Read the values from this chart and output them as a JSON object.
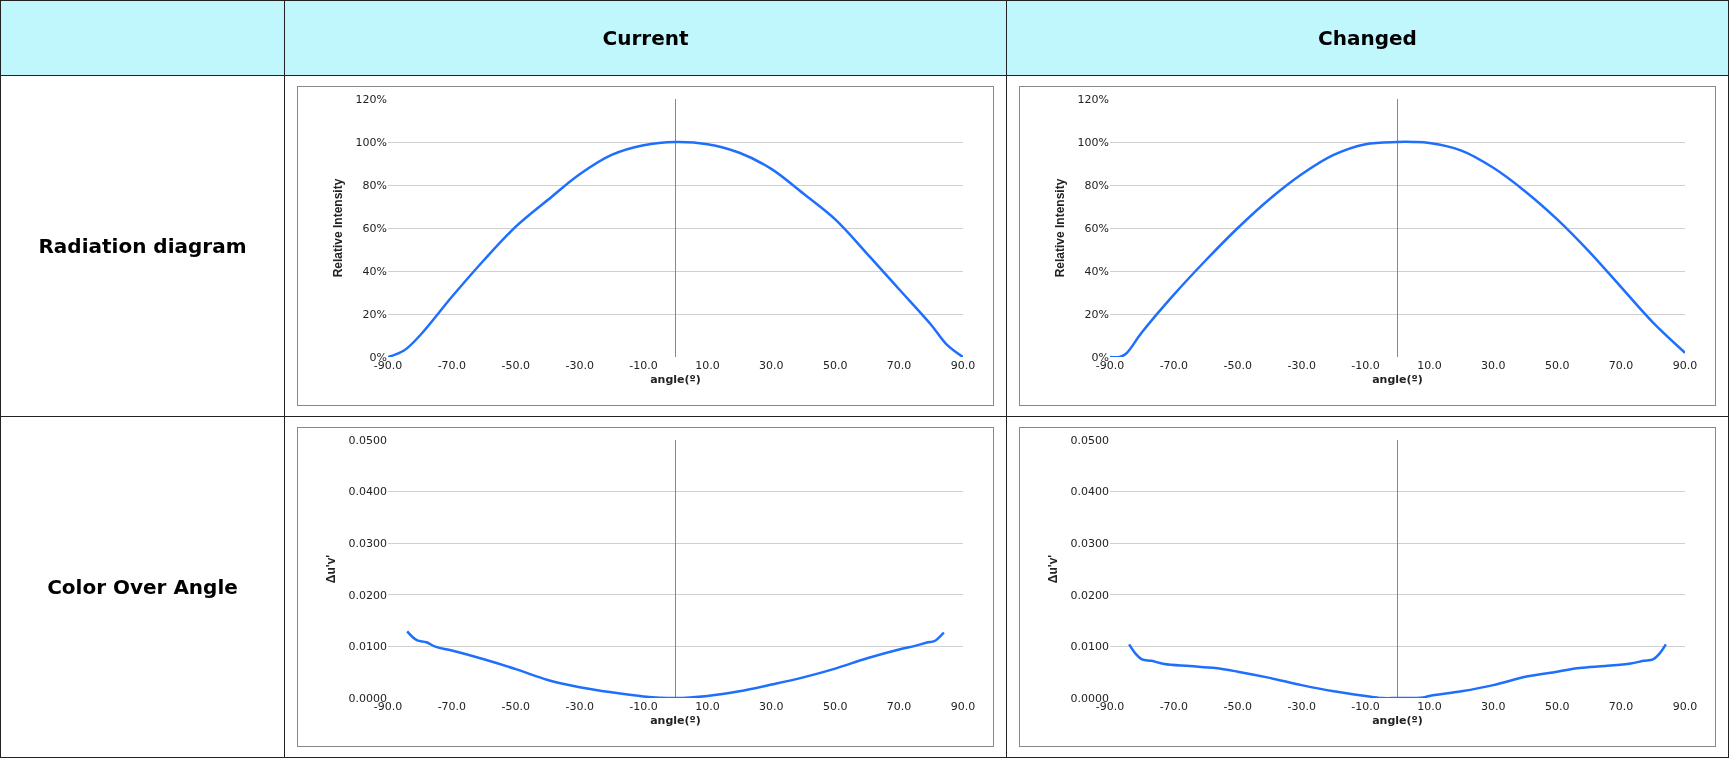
{
  "chart_data": [
    {
      "type": "other",
      "categories": [
        "Current",
        "Changed"
      ],
      "y_categories": [
        "Radiation diagram",
        "Color Over Angle"
      ]
    },
    {
      "type": "line",
      "xlabel": "angle(º)",
      "ylabel": "Relative Intensity",
      "color": "#1f6fff",
      "grid": "y",
      "marker": "none",
      "line_style": "solid",
      "x": [
        -90,
        -85,
        -80,
        -70,
        -60,
        -50,
        -40,
        -30,
        -20,
        -10,
        0,
        10,
        20,
        30,
        40,
        50,
        60,
        70,
        80,
        85,
        90
      ],
      "values": [
        0,
        3,
        10,
        28,
        45,
        60.6,
        73,
        85,
        94,
        98.5,
        100,
        99,
        95,
        87.5,
        76,
        64,
        48,
        31.5,
        15,
        5.6,
        0
      ],
      "xlim": [
        -90,
        90
      ],
      "xticks": [
        {
          "value": -90,
          "label": "-90.0"
        },
        {
          "value": -70,
          "label": "-70.0"
        },
        {
          "value": -50,
          "label": "-50.0"
        },
        {
          "value": -30,
          "label": "-30.0"
        },
        {
          "value": -10,
          "label": "-10.0"
        },
        {
          "value": 10,
          "label": "10.0"
        },
        {
          "value": 30,
          "label": "30.0"
        },
        {
          "value": 50,
          "label": "50.0"
        },
        {
          "value": 70,
          "label": "70.0"
        },
        {
          "value": 90,
          "label": "90.0"
        }
      ],
      "ylim": [
        0,
        120
      ],
      "yticks": [
        {
          "value": 0,
          "label": "0%"
        },
        {
          "value": 20,
          "label": "20%"
        },
        {
          "value": 40,
          "label": "40%"
        },
        {
          "value": 60,
          "label": "60%"
        },
        {
          "value": 80,
          "label": "80%"
        },
        {
          "value": 100,
          "label": "100%"
        },
        {
          "value": 120,
          "label": "120%"
        }
      ]
    },
    {
      "type": "line",
      "xlabel": "angle(º)",
      "ylabel": "Relative Intensity",
      "color": "#1f6fff",
      "grid": "y",
      "marker": "none",
      "line_style": "solid",
      "x": [
        -90,
        -87,
        -85,
        -80,
        -70,
        -60,
        -50,
        -40,
        -30,
        -20,
        -10,
        0,
        5,
        10,
        20,
        30,
        40,
        50,
        60,
        70,
        80,
        90
      ],
      "values": [
        0,
        0,
        1.5,
        11.5,
        29,
        45,
        60,
        73.5,
        85,
        94,
        99,
        100,
        100,
        99.5,
        96,
        88,
        77,
        64,
        49,
        32.5,
        16,
        2
      ],
      "xlim": [
        -90,
        90
      ],
      "xticks": [
        {
          "value": -90,
          "label": "-90.0"
        },
        {
          "value": -70,
          "label": "-70.0"
        },
        {
          "value": -50,
          "label": "-50.0"
        },
        {
          "value": -30,
          "label": "-30.0"
        },
        {
          "value": -10,
          "label": "-10.0"
        },
        {
          "value": 10,
          "label": "10.0"
        },
        {
          "value": 30,
          "label": "30.0"
        },
        {
          "value": 50,
          "label": "50.0"
        },
        {
          "value": 70,
          "label": "70.0"
        },
        {
          "value": 90,
          "label": "90.0"
        }
      ],
      "ylim": [
        0,
        120
      ],
      "yticks": [
        {
          "value": 0,
          "label": "0%"
        },
        {
          "value": 20,
          "label": "20%"
        },
        {
          "value": 40,
          "label": "40%"
        },
        {
          "value": 60,
          "label": "60%"
        },
        {
          "value": 80,
          "label": "80%"
        },
        {
          "value": 100,
          "label": "100%"
        },
        {
          "value": 120,
          "label": "120%"
        }
      ]
    },
    {
      "type": "line",
      "xlabel": "angle(º)",
      "ylabel": "Δu'v'",
      "color": "#1f6fff",
      "grid": "y",
      "marker": "none",
      "line_style": "solid",
      "x": [
        -84,
        -81,
        -78,
        -75,
        -70,
        -60,
        -50,
        -40,
        -30,
        -20,
        -10,
        0,
        10,
        20,
        30,
        40,
        50,
        60,
        70,
        75,
        79,
        81,
        84
      ],
      "values": [
        0.0129,
        0.0112,
        0.0108,
        0.0099,
        0.0092,
        0.0075,
        0.0056,
        0.0035,
        0.0021,
        0.0011,
        0.0003,
        0,
        0.0004,
        0.0013,
        0.0026,
        0.004,
        0.0057,
        0.0077,
        0.0094,
        0.0101,
        0.0108,
        0.011,
        0.0127
      ],
      "xlim": [
        -90,
        90
      ],
      "xticks": [
        {
          "value": -90,
          "label": "-90.0"
        },
        {
          "value": -70,
          "label": "-70.0"
        },
        {
          "value": -50,
          "label": "-50.0"
        },
        {
          "value": -30,
          "label": "-30.0"
        },
        {
          "value": -10,
          "label": "-10.0"
        },
        {
          "value": 10,
          "label": "10.0"
        },
        {
          "value": 30,
          "label": "30.0"
        },
        {
          "value": 50,
          "label": "50.0"
        },
        {
          "value": 70,
          "label": "70.0"
        },
        {
          "value": 90,
          "label": "90.0"
        }
      ],
      "ylim": [
        0,
        0.05
      ],
      "yticks": [
        {
          "value": 0,
          "label": "0.0000"
        },
        {
          "value": 0.01,
          "label": "0.0100"
        },
        {
          "value": 0.02,
          "label": "0.0200"
        },
        {
          "value": 0.03,
          "label": "0.0300"
        },
        {
          "value": 0.04,
          "label": "0.0400"
        },
        {
          "value": 0.05,
          "label": "0.0500"
        }
      ]
    },
    {
      "type": "line",
      "xlabel": "angle(º)",
      "ylabel": "Δu'v'",
      "color": "#1f6fff",
      "grid": "y",
      "marker": "none",
      "line_style": "solid",
      "x": [
        -84,
        -82,
        -80,
        -77,
        -73,
        -65,
        -57,
        -50,
        -40,
        -30,
        -20,
        -10,
        -5,
        0,
        8,
        10,
        20,
        30,
        40,
        50,
        57,
        65,
        73,
        77,
        80,
        82,
        84
      ],
      "values": [
        0.0104,
        0.0086,
        0.0075,
        0.0072,
        0.0066,
        0.0062,
        0.0058,
        0.0051,
        0.0039,
        0.0025,
        0.0013,
        0.0004,
        0,
        0,
        0.0001,
        0.0004,
        0.0013,
        0.0025,
        0.0041,
        0.0051,
        0.0058,
        0.0062,
        0.0067,
        0.0072,
        0.0075,
        0.0086,
        0.0104
      ],
      "xlim": [
        -90,
        90
      ],
      "xticks": [
        {
          "value": -90,
          "label": "-90.0"
        },
        {
          "value": -70,
          "label": "-70.0"
        },
        {
          "value": -50,
          "label": "-50.0"
        },
        {
          "value": -30,
          "label": "-30.0"
        },
        {
          "value": -10,
          "label": "-10.0"
        },
        {
          "value": 10,
          "label": "10.0"
        },
        {
          "value": 30,
          "label": "30.0"
        },
        {
          "value": 50,
          "label": "50.0"
        },
        {
          "value": 70,
          "label": "70.0"
        },
        {
          "value": 90,
          "label": "90.0"
        }
      ],
      "ylim": [
        0,
        0.05
      ],
      "yticks": [
        {
          "value": 0,
          "label": "0.0000"
        },
        {
          "value": 0.01,
          "label": "0.0100"
        },
        {
          "value": 0.02,
          "label": "0.0200"
        },
        {
          "value": 0.03,
          "label": "0.0300"
        },
        {
          "value": 0.04,
          "label": "0.0400"
        },
        {
          "value": 0.05,
          "label": "0.0500"
        }
      ]
    }
  ]
}
